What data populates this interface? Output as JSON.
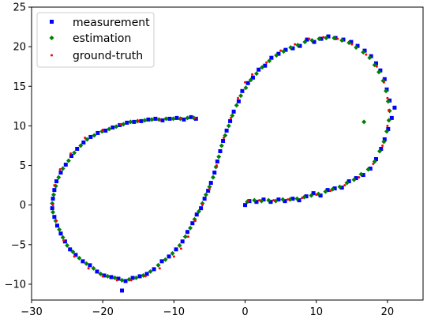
{
  "chart_data": {
    "type": "scatter",
    "title": "",
    "xlabel": "",
    "ylabel": "",
    "xlim": [
      -30,
      25
    ],
    "ylim": [
      -12,
      25
    ],
    "x_ticks": [
      -30,
      -20,
      -10,
      0,
      10,
      20
    ],
    "y_ticks": [
      -10,
      -5,
      0,
      5,
      10,
      15,
      20,
      25
    ],
    "x_tick_labels": [
      "−30",
      "−20",
      "−10",
      "0",
      "10",
      "20"
    ],
    "y_tick_labels": [
      "−10",
      "−5",
      "0",
      "5",
      "10",
      "15",
      "20",
      "25"
    ],
    "grid": false,
    "legend_position": "upper-left",
    "legend": [
      {
        "label": "measurement",
        "color": "#0000ff",
        "marker": "square"
      },
      {
        "label": "estimation",
        "color": "#008000",
        "marker": "diamond"
      },
      {
        "label": "ground-truth",
        "color": "#ff0000",
        "marker": "dot"
      }
    ],
    "series": [
      {
        "name": "ground-truth",
        "color": "#ff0000",
        "marker": "dot",
        "points": [
          [
            0.5,
            0.5
          ],
          [
            2,
            0.6
          ],
          [
            4,
            0.6
          ],
          [
            6,
            0.7
          ],
          [
            8,
            0.9
          ],
          [
            10,
            1.3
          ],
          [
            12,
            1.8
          ],
          [
            14,
            2.5
          ],
          [
            16,
            3.5
          ],
          [
            18,
            5.2
          ],
          [
            19.3,
            7.5
          ],
          [
            20,
            10
          ],
          [
            20.2,
            12
          ],
          [
            20,
            13.5
          ],
          [
            19.5,
            15.5
          ],
          [
            18.5,
            17.5
          ],
          [
            17,
            19
          ],
          [
            15,
            20.3
          ],
          [
            13,
            21
          ],
          [
            11,
            21.2
          ],
          [
            9,
            21
          ],
          [
            7,
            20.3
          ],
          [
            5,
            19.5
          ],
          [
            3,
            18
          ],
          [
            1,
            16.5
          ],
          [
            0,
            15.5
          ],
          [
            -1,
            13.5
          ],
          [
            -2,
            11
          ],
          [
            -3,
            8.5
          ],
          [
            -4,
            5
          ],
          [
            -5,
            2
          ],
          [
            -6,
            0
          ],
          [
            -7,
            -2
          ],
          [
            -8,
            -4
          ],
          [
            -9,
            -5.5
          ],
          [
            -10,
            -6.5
          ],
          [
            -12,
            -8
          ],
          [
            -14,
            -9
          ],
          [
            -16,
            -9.5
          ],
          [
            -18,
            -9.5
          ],
          [
            -20,
            -9
          ],
          [
            -22,
            -8
          ],
          [
            -24,
            -6.5
          ],
          [
            -25.5,
            -4.5
          ],
          [
            -26.5,
            -2
          ],
          [
            -27,
            0
          ],
          [
            -26.8,
            2.5
          ],
          [
            -26,
            4.5
          ],
          [
            -24.5,
            6.5
          ],
          [
            -22.5,
            8.5
          ],
          [
            -20,
            9.5
          ],
          [
            -17.5,
            10.2
          ],
          [
            -15,
            10.6
          ],
          [
            -12,
            10.8
          ],
          [
            -9,
            11
          ],
          [
            -7,
            11
          ]
        ]
      },
      {
        "name": "measurement",
        "color": "#0000ff",
        "marker": "square",
        "points": [
          [
            0,
            0
          ],
          [
            0.6,
            0.5
          ],
          [
            1.6,
            0.4
          ],
          [
            2.6,
            0.7
          ],
          [
            3.6,
            0.4
          ],
          [
            4.7,
            0.7
          ],
          [
            5.6,
            0.5
          ],
          [
            6.7,
            0.8
          ],
          [
            7.6,
            0.6
          ],
          [
            8.6,
            1.1
          ],
          [
            9.6,
            1.5
          ],
          [
            10.6,
            1.2
          ],
          [
            11.6,
            1.9
          ],
          [
            12.6,
            2.1
          ],
          [
            13.6,
            2.2
          ],
          [
            14.6,
            3.0
          ],
          [
            15.6,
            3.4
          ],
          [
            16.6,
            3.8
          ],
          [
            17.6,
            4.6
          ],
          [
            18.4,
            5.8
          ],
          [
            19.1,
            7.1
          ],
          [
            19.6,
            8.3
          ],
          [
            20.1,
            9.6
          ],
          [
            20.6,
            11.0
          ],
          [
            21.0,
            12.3
          ],
          [
            20.3,
            13.2
          ],
          [
            19.9,
            14.6
          ],
          [
            19.6,
            15.9
          ],
          [
            19.0,
            17.0
          ],
          [
            18.4,
            17.9
          ],
          [
            17.7,
            18.8
          ],
          [
            16.8,
            19.5
          ],
          [
            15.8,
            20.1
          ],
          [
            14.9,
            20.6
          ],
          [
            13.8,
            20.9
          ],
          [
            12.7,
            21.1
          ],
          [
            11.7,
            21.3
          ],
          [
            10.7,
            21.0
          ],
          [
            9.7,
            20.6
          ],
          [
            8.7,
            20.9
          ],
          [
            7.7,
            20.1
          ],
          [
            6.7,
            19.8
          ],
          [
            5.7,
            19.6
          ],
          [
            4.7,
            19.1
          ],
          [
            3.7,
            18.6
          ],
          [
            2.8,
            17.6
          ],
          [
            1.9,
            17.1
          ],
          [
            1.1,
            16.1
          ],
          [
            0.4,
            15.4
          ],
          [
            -0.4,
            14.4
          ],
          [
            -0.9,
            13.1
          ],
          [
            -1.6,
            11.8
          ],
          [
            -2.1,
            10.6
          ],
          [
            -2.6,
            9.4
          ],
          [
            -3.1,
            8.1
          ],
          [
            -3.5,
            6.8
          ],
          [
            -3.9,
            5.5
          ],
          [
            -4.3,
            4.1
          ],
          [
            -4.8,
            2.8
          ],
          [
            -5.2,
            1.8
          ],
          [
            -5.7,
            0.8
          ],
          [
            -6.2,
            -0.4
          ],
          [
            -6.8,
            -1.2
          ],
          [
            -7.4,
            -2.3
          ],
          [
            -8.1,
            -3.4
          ],
          [
            -8.8,
            -4.6
          ],
          [
            -9.7,
            -5.6
          ],
          [
            -10.7,
            -6.5
          ],
          [
            -11.7,
            -7.1
          ],
          [
            -12.8,
            -8.1
          ],
          [
            -13.8,
            -8.7
          ],
          [
            -14.8,
            -9.0
          ],
          [
            -15.8,
            -9.2
          ],
          [
            -16.8,
            -9.6
          ],
          [
            -17.3,
            -10.8
          ],
          [
            -17.8,
            -9.3
          ],
          [
            -18.8,
            -9.1
          ],
          [
            -19.8,
            -8.9
          ],
          [
            -20.8,
            -8.4
          ],
          [
            -21.8,
            -7.6
          ],
          [
            -22.8,
            -7.1
          ],
          [
            -23.8,
            -6.3
          ],
          [
            -24.6,
            -5.6
          ],
          [
            -25.3,
            -4.6
          ],
          [
            -25.9,
            -3.6
          ],
          [
            -26.4,
            -2.6
          ],
          [
            -26.8,
            -1.5
          ],
          [
            -27.1,
            -0.4
          ],
          [
            -27.0,
            0.8
          ],
          [
            -26.8,
            1.9
          ],
          [
            -26.5,
            3.0
          ],
          [
            -25.9,
            4.1
          ],
          [
            -25.2,
            5.1
          ],
          [
            -24.4,
            6.2
          ],
          [
            -23.6,
            7.1
          ],
          [
            -22.7,
            7.9
          ],
          [
            -21.7,
            8.6
          ],
          [
            -20.7,
            9.1
          ],
          [
            -19.6,
            9.4
          ],
          [
            -18.6,
            9.8
          ],
          [
            -17.6,
            10.1
          ],
          [
            -16.6,
            10.4
          ],
          [
            -15.6,
            10.5
          ],
          [
            -14.6,
            10.6
          ],
          [
            -13.6,
            10.8
          ],
          [
            -12.6,
            10.9
          ],
          [
            -11.6,
            10.7
          ],
          [
            -10.6,
            10.9
          ],
          [
            -9.6,
            11.0
          ],
          [
            -8.6,
            10.8
          ],
          [
            -7.6,
            11.1
          ],
          [
            -6.9,
            10.9
          ]
        ]
      },
      {
        "name": "estimation",
        "color": "#008000",
        "marker": "diamond",
        "points": [
          [
            0.3,
            0.4
          ],
          [
            1.3,
            0.6
          ],
          [
            2.3,
            0.5
          ],
          [
            3.3,
            0.6
          ],
          [
            4.3,
            0.5
          ],
          [
            5.3,
            0.7
          ],
          [
            6.3,
            0.7
          ],
          [
            7.3,
            0.8
          ],
          [
            8.3,
            1.0
          ],
          [
            9.3,
            1.2
          ],
          [
            10.3,
            1.4
          ],
          [
            11.3,
            1.7
          ],
          [
            12.3,
            2.0
          ],
          [
            13.3,
            2.3
          ],
          [
            14.3,
            2.8
          ],
          [
            15.3,
            3.2
          ],
          [
            16.3,
            3.9
          ],
          [
            17.3,
            4.5
          ],
          [
            18.2,
            5.5
          ],
          [
            18.9,
            6.8
          ],
          [
            19.5,
            8.0
          ],
          [
            19.9,
            9.3
          ],
          [
            20.2,
            10.7
          ],
          [
            20.3,
            11.9
          ],
          [
            20.1,
            13.1
          ],
          [
            19.8,
            14.4
          ],
          [
            19.4,
            15.7
          ],
          [
            18.8,
            16.8
          ],
          [
            18.2,
            17.7
          ],
          [
            17.5,
            18.6
          ],
          [
            16.6,
            19.3
          ],
          [
            15.6,
            19.9
          ],
          [
            14.6,
            20.5
          ],
          [
            13.6,
            20.8
          ],
          [
            12.5,
            21.1
          ],
          [
            11.4,
            21.1
          ],
          [
            10.4,
            21.0
          ],
          [
            9.4,
            20.8
          ],
          [
            8.4,
            20.6
          ],
          [
            7.4,
            20.2
          ],
          [
            6.4,
            19.9
          ],
          [
            5.4,
            19.4
          ],
          [
            4.4,
            18.9
          ],
          [
            3.4,
            18.2
          ],
          [
            2.4,
            17.4
          ],
          [
            1.6,
            16.6
          ],
          [
            0.8,
            15.8
          ],
          [
            0.1,
            14.8
          ],
          [
            -0.6,
            13.8
          ],
          [
            -1.2,
            12.6
          ],
          [
            -1.8,
            11.3
          ],
          [
            -2.3,
            10.0
          ],
          [
            -2.8,
            8.8
          ],
          [
            -3.3,
            7.5
          ],
          [
            -3.7,
            6.1
          ],
          [
            -4.1,
            4.8
          ],
          [
            -4.5,
            3.5
          ],
          [
            -5.0,
            2.3
          ],
          [
            -5.5,
            1.3
          ],
          [
            -6.0,
            0.2
          ],
          [
            -6.5,
            -0.8
          ],
          [
            -7.1,
            -1.8
          ],
          [
            -7.7,
            -2.9
          ],
          [
            -8.4,
            -4.0
          ],
          [
            -9.2,
            -5.1
          ],
          [
            -10.2,
            -6.1
          ],
          [
            -11.2,
            -6.9
          ],
          [
            -12.2,
            -7.6
          ],
          [
            -13.3,
            -8.4
          ],
          [
            -14.3,
            -8.9
          ],
          [
            -15.3,
            -9.2
          ],
          [
            -16.3,
            -9.4
          ],
          [
            -17.3,
            -9.5
          ],
          [
            -18.3,
            -9.2
          ],
          [
            -19.3,
            -9.0
          ],
          [
            -20.3,
            -8.7
          ],
          [
            -21.3,
            -8.0
          ],
          [
            -22.3,
            -7.4
          ],
          [
            -23.3,
            -6.7
          ],
          [
            -24.2,
            -5.9
          ],
          [
            -25.0,
            -5.1
          ],
          [
            -25.6,
            -4.1
          ],
          [
            -26.1,
            -3.1
          ],
          [
            -26.6,
            -2.0
          ],
          [
            -27.0,
            -0.9
          ],
          [
            -27.1,
            0.2
          ],
          [
            -26.9,
            1.3
          ],
          [
            -26.6,
            2.4
          ],
          [
            -26.2,
            3.5
          ],
          [
            -25.6,
            4.6
          ],
          [
            -24.8,
            5.6
          ],
          [
            -24.0,
            6.6
          ],
          [
            -23.1,
            7.5
          ],
          [
            -22.2,
            8.3
          ],
          [
            -21.2,
            8.8
          ],
          [
            -20.1,
            9.3
          ],
          [
            -19.1,
            9.6
          ],
          [
            -18.1,
            9.9
          ],
          [
            -17.1,
            10.2
          ],
          [
            -16.1,
            10.5
          ],
          [
            -15.1,
            10.6
          ],
          [
            -14.1,
            10.7
          ],
          [
            -13.1,
            10.8
          ],
          [
            -12.1,
            10.8
          ],
          [
            -11.1,
            10.9
          ],
          [
            -10.1,
            10.9
          ],
          [
            -9.1,
            10.9
          ],
          [
            -8.1,
            11.0
          ],
          [
            -7.2,
            11.0
          ],
          [
            16.7,
            10.5
          ]
        ]
      }
    ]
  }
}
